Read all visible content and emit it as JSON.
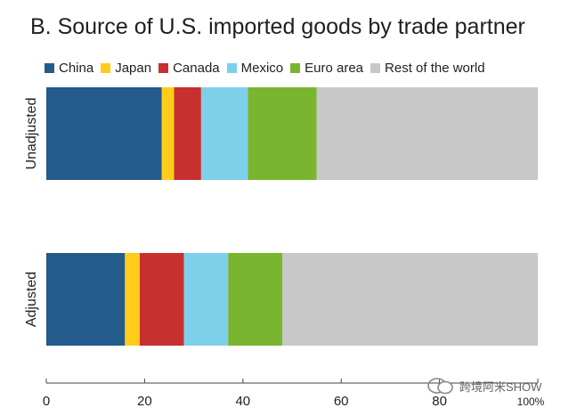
{
  "chart_data": {
    "type": "bar",
    "orientation": "horizontal",
    "stacked": true,
    "title": "B. Source of U.S. imported goods by trade partner",
    "categories": [
      "Unadjusted",
      "Adjusted"
    ],
    "series": [
      {
        "name": "China",
        "color": "#235b8b",
        "values": [
          23.5,
          16.0
        ]
      },
      {
        "name": "Japan",
        "color": "#ffcc1a",
        "values": [
          2.5,
          3.0
        ]
      },
      {
        "name": "Canada",
        "color": "#c6302e",
        "values": [
          5.5,
          9.0
        ]
      },
      {
        "name": "Mexico",
        "color": "#7dd0ea",
        "values": [
          9.5,
          9.0
        ]
      },
      {
        "name": "Euro area",
        "color": "#7ab52f",
        "values": [
          14.0,
          11.0
        ]
      },
      {
        "name": "Rest of the world",
        "color": "#c8c8c8",
        "values": [
          45.0,
          52.0
        ]
      }
    ],
    "xlim": [
      0,
      100
    ],
    "xticks": [
      0,
      20,
      40,
      60,
      80
    ],
    "xtick_last_label": "100%",
    "legend_position": "top",
    "grid": false
  },
  "watermark": {
    "text": "跨境阿米SHOW"
  }
}
